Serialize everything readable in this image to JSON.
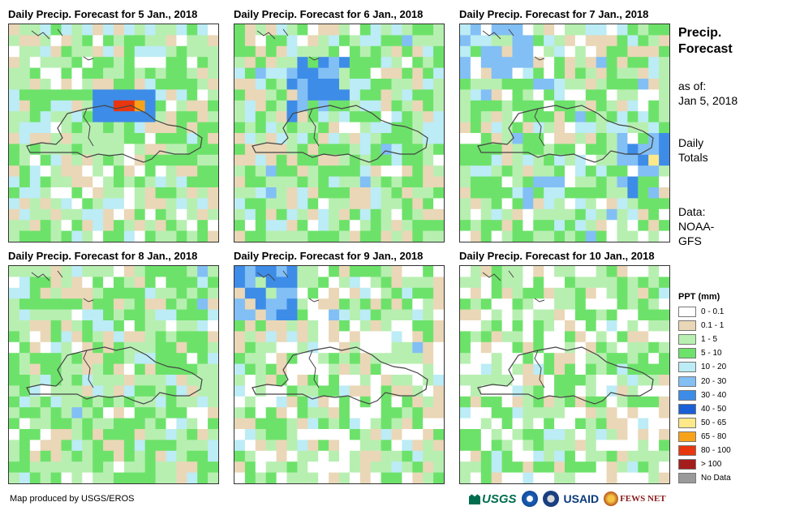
{
  "panels": [
    {
      "title": "Daily Precip. Forecast for 5 Jan., 2018",
      "day": 5
    },
    {
      "title": "Daily Precip. Forecast for 6 Jan., 2018",
      "day": 6
    },
    {
      "title": "Daily Precip. Forecast for 7 Jan., 2018",
      "day": 7
    },
    {
      "title": "Daily Precip. Forecast for 8 Jan., 2018",
      "day": 8
    },
    {
      "title": "Daily Precip. Forecast for 9 Jan., 2018",
      "day": 9
    },
    {
      "title": "Daily Precip. Forecast for 10 Jan., 2018",
      "day": 10
    }
  ],
  "sidebar": {
    "title_line1": "Precip.",
    "title_line2": "Forecast",
    "asof_line1": "as of:",
    "asof_line2": "Jan 5, 2018",
    "totals_line1": "Daily",
    "totals_line2": "Totals",
    "data_line1": "Data:",
    "data_line2": "NOAA-",
    "data_line3": "GFS"
  },
  "legend": {
    "title": "PPT (mm)",
    "items": [
      {
        "label": "0 - 0.1",
        "color": "#ffffff"
      },
      {
        "label": "0.1 - 1",
        "color": "#ead7b7"
      },
      {
        "label": "1 - 5",
        "color": "#b7efb1"
      },
      {
        "label": "5 - 10",
        "color": "#6de26a"
      },
      {
        "label": "10 - 20",
        "color": "#bcecf5"
      },
      {
        "label": "20 - 30",
        "color": "#82bff5"
      },
      {
        "label": "30 - 40",
        "color": "#3d8ce8"
      },
      {
        "label": "40 - 50",
        "color": "#1a5fd6"
      },
      {
        "label": "50 - 65",
        "color": "#fde98a"
      },
      {
        "label": "65 - 80",
        "color": "#f8a21a"
      },
      {
        "label": "80 - 100",
        "color": "#e8360e"
      },
      {
        "label": "> 100",
        "color": "#a41c1c"
      },
      {
        "label": "No Data",
        "color": "#9a9a9a"
      }
    ]
  },
  "credit": "Map produced by USGS/EROS",
  "logos": {
    "usgs": "USGS",
    "noaa": "NOAA",
    "usaid": "USAID",
    "fews": "FEWS NET"
  }
}
